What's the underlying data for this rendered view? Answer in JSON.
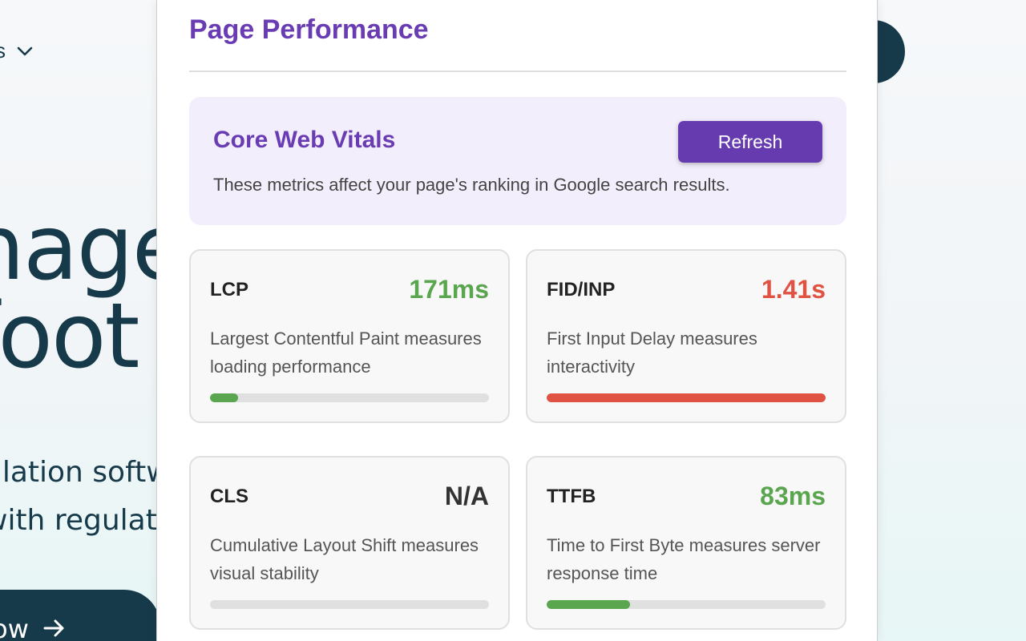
{
  "background_page": {
    "nav_fragment": "s",
    "hero_lines": [
      "nage",
      "foot"
    ],
    "sub_lines": [
      "ulation softw",
      "with regulat"
    ],
    "cta_label": "rt now"
  },
  "panel": {
    "title": "Page Performance",
    "core_web_vitals": {
      "title": "Core Web Vitals",
      "description": "These metrics affect your page's ranking in Google search results.",
      "refresh_label": "Refresh"
    },
    "metrics": [
      {
        "name": "LCP",
        "value": "171ms",
        "status": "good",
        "color": "#5aa64f",
        "description": "Largest Contentful Paint measures loading performance",
        "progress": 0.1
      },
      {
        "name": "FID/INP",
        "value": "1.41s",
        "status": "poor",
        "color": "#e05242",
        "description": "First Input Delay measures interactivity",
        "progress": 1.0
      },
      {
        "name": "CLS",
        "value": "N/A",
        "status": "none",
        "color": "#333333",
        "description": "Cumulative Layout Shift measures visual stability",
        "progress": 0
      },
      {
        "name": "TTFB",
        "value": "83ms",
        "status": "good",
        "color": "#5aa64f",
        "description": "Time to First Byte measures server response time",
        "progress": 0.3
      }
    ]
  },
  "colors": {
    "accent": "#6a3cb3",
    "button": "#663bb0",
    "good": "#5aa64f",
    "poor": "#e05242",
    "background_dark": "#173a4a"
  }
}
